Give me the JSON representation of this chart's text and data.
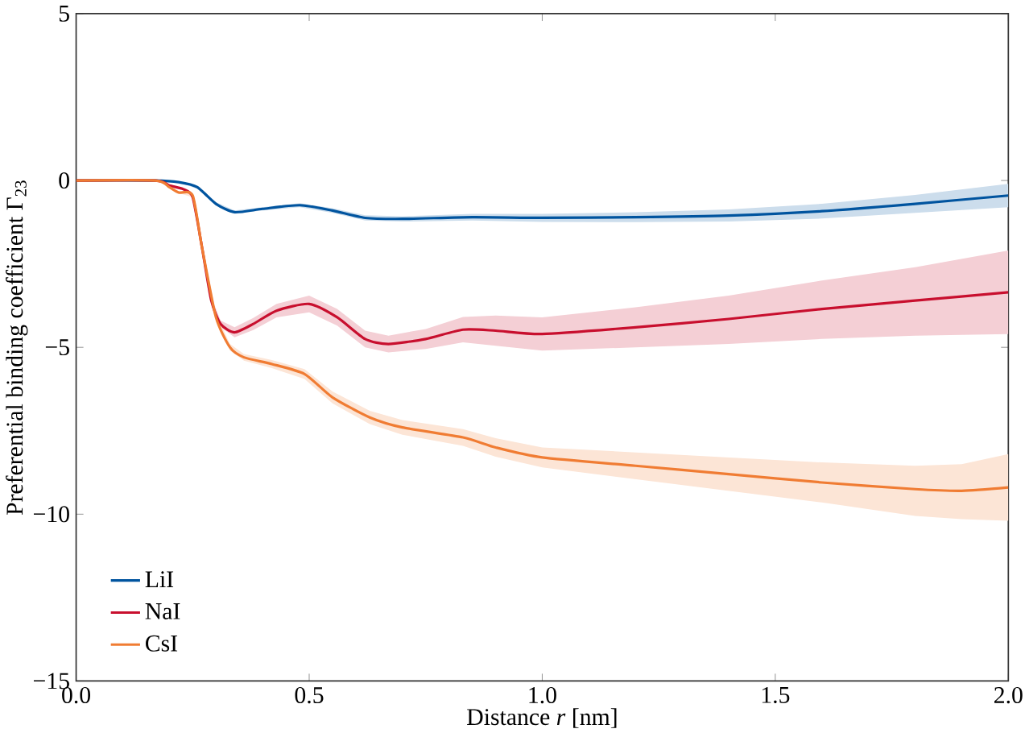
{
  "chart_data": {
    "type": "line",
    "xlabel": "Distance *r* [nm]",
    "ylabel": "Preferential binding coefficient Γ$_{23}$",
    "xlim": [
      0,
      2
    ],
    "ylim": [
      -15,
      5
    ],
    "xticks": [
      {
        "value": 0,
        "label": "0.0"
      },
      {
        "value": 0.5,
        "label": "0.5"
      },
      {
        "value": 1,
        "label": "1.0"
      },
      {
        "value": 1.5,
        "label": "1.5"
      },
      {
        "value": 2,
        "label": "2.0"
      }
    ],
    "yticks": [
      {
        "value": -15,
        "label": "−15"
      },
      {
        "value": -10,
        "label": "−10"
      },
      {
        "value": -5,
        "label": "−5"
      },
      0,
      5
    ],
    "grid": false,
    "legend": "bottom left",
    "marker": "none",
    "line_style": "solid",
    "series": [
      {
        "name": "LiI",
        "color": "#00549f",
        "x": [
          0,
          0.17,
          0.22,
          0.26,
          0.3,
          0.34,
          0.4,
          0.48,
          0.55,
          0.62,
          0.7,
          0.85,
          1.0,
          1.2,
          1.4,
          1.6,
          1.8,
          2.0
        ],
        "values": [
          0,
          0,
          -0.05,
          -0.2,
          -0.7,
          -0.95,
          -0.85,
          -0.74,
          -0.9,
          -1.12,
          -1.15,
          -1.1,
          -1.12,
          -1.1,
          -1.05,
          -0.92,
          -0.7,
          -0.45
        ],
        "lower": [
          0,
          0,
          -0.05,
          -0.25,
          -0.75,
          -1.0,
          -0.9,
          -0.8,
          -0.97,
          -1.2,
          -1.23,
          -1.2,
          -1.24,
          -1.25,
          -1.23,
          -1.14,
          -0.97,
          -0.8
        ],
        "upper": [
          0,
          0,
          -0.05,
          -0.15,
          -0.65,
          -0.9,
          -0.8,
          -0.68,
          -0.83,
          -1.04,
          -1.07,
          -1.0,
          -1.0,
          -0.95,
          -0.87,
          -0.7,
          -0.43,
          -0.1
        ]
      },
      {
        "name": "NaI",
        "color": "#c80f2e",
        "x": [
          0,
          0.17,
          0.2,
          0.23,
          0.25,
          0.27,
          0.29,
          0.31,
          0.34,
          0.38,
          0.43,
          0.5,
          0.56,
          0.62,
          0.67,
          0.75,
          0.83,
          0.9,
          1.0,
          1.2,
          1.4,
          1.6,
          1.8,
          2.0
        ],
        "values": [
          0,
          0,
          -0.15,
          -0.26,
          -0.5,
          -2.0,
          -3.6,
          -4.3,
          -4.55,
          -4.3,
          -3.9,
          -3.7,
          -4.1,
          -4.75,
          -4.9,
          -4.75,
          -4.47,
          -4.5,
          -4.6,
          -4.4,
          -4.15,
          -3.85,
          -3.6,
          -3.35
        ],
        "lower": [
          0,
          0,
          -0.15,
          -0.28,
          -0.55,
          -2.1,
          -3.7,
          -4.4,
          -4.7,
          -4.48,
          -4.1,
          -3.95,
          -4.35,
          -5.0,
          -5.15,
          -5.05,
          -4.85,
          -4.95,
          -5.1,
          -5.0,
          -4.9,
          -4.75,
          -4.65,
          -4.6
        ],
        "upper": [
          0,
          0,
          -0.15,
          -0.24,
          -0.45,
          -1.9,
          -3.5,
          -4.2,
          -4.4,
          -4.12,
          -3.7,
          -3.45,
          -3.85,
          -4.5,
          -4.65,
          -4.45,
          -4.09,
          -4.05,
          -4.1,
          -3.8,
          -3.45,
          -3.0,
          -2.6,
          -2.1
        ]
      },
      {
        "name": "CsI",
        "color": "#f07c33",
        "x": [
          0,
          0.17,
          0.2,
          0.22,
          0.25,
          0.27,
          0.3,
          0.33,
          0.36,
          0.42,
          0.49,
          0.55,
          0.63,
          0.7,
          0.83,
          0.9,
          1.0,
          1.2,
          1.4,
          1.6,
          1.8,
          1.9,
          2.0
        ],
        "values": [
          0,
          0,
          -0.2,
          -0.36,
          -0.45,
          -2.0,
          -4.1,
          -5.0,
          -5.3,
          -5.5,
          -5.8,
          -6.5,
          -7.1,
          -7.4,
          -7.7,
          -8.0,
          -8.3,
          -8.55,
          -8.8,
          -9.05,
          -9.25,
          -9.3,
          -9.2
        ],
        "lower": [
          0,
          0,
          -0.2,
          -0.38,
          -0.5,
          -2.1,
          -4.2,
          -5.1,
          -5.4,
          -5.62,
          -5.95,
          -6.68,
          -7.3,
          -7.62,
          -7.95,
          -8.28,
          -8.6,
          -8.95,
          -9.3,
          -9.65,
          -10.05,
          -10.15,
          -10.2
        ],
        "upper": [
          0,
          0,
          -0.2,
          -0.34,
          -0.4,
          -1.9,
          -4.0,
          -4.9,
          -5.2,
          -5.38,
          -5.65,
          -6.32,
          -6.9,
          -7.18,
          -7.45,
          -7.72,
          -8.0,
          -8.15,
          -8.3,
          -8.45,
          -8.55,
          -8.5,
          -8.2
        ]
      }
    ]
  }
}
